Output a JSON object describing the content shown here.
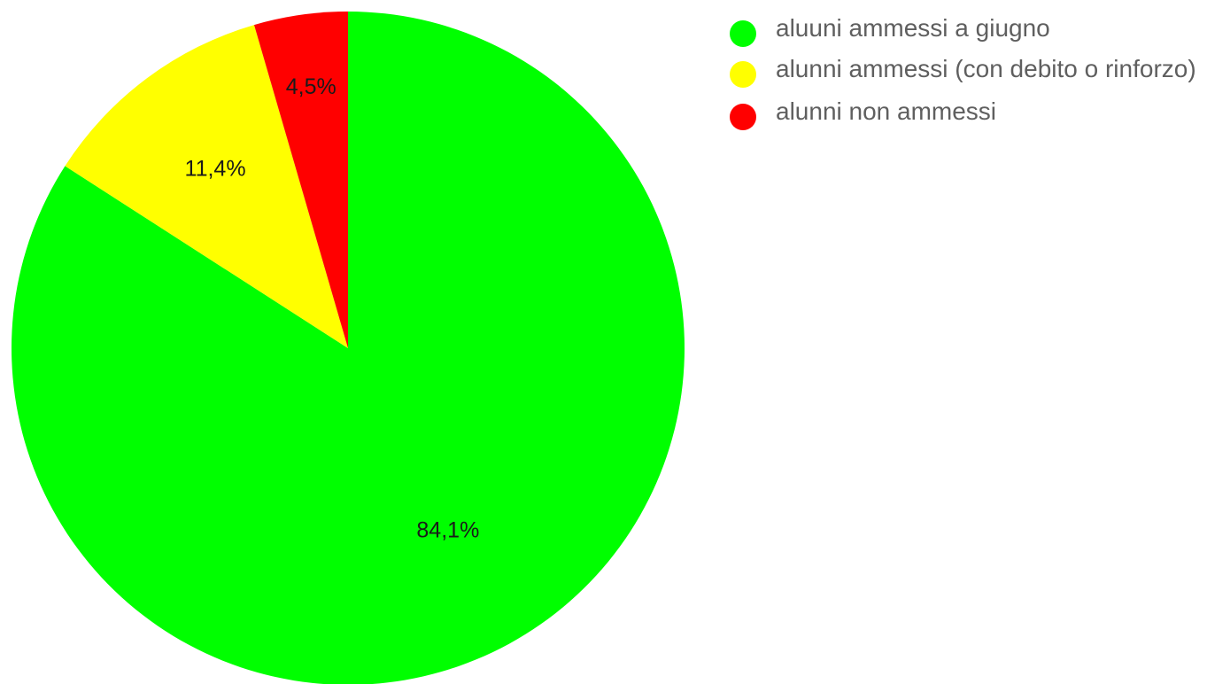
{
  "chart_data": {
    "type": "pie",
    "title": "",
    "slices": [
      {
        "label": "aluuni ammessi a giugno",
        "value": 84.1,
        "display": "84,1%",
        "color": "#00ff00"
      },
      {
        "label": "alunni ammessi (con debito o rinforzo)",
        "value": 11.4,
        "display": "11,4%",
        "color": "#ffff00"
      },
      {
        "label": "alunni non ammessi",
        "value": 4.5,
        "display": "4,5%",
        "color": "#ff0000"
      }
    ],
    "start_angle": "12 o'clock",
    "direction": "clockwise",
    "legend_position": "top-right"
  }
}
